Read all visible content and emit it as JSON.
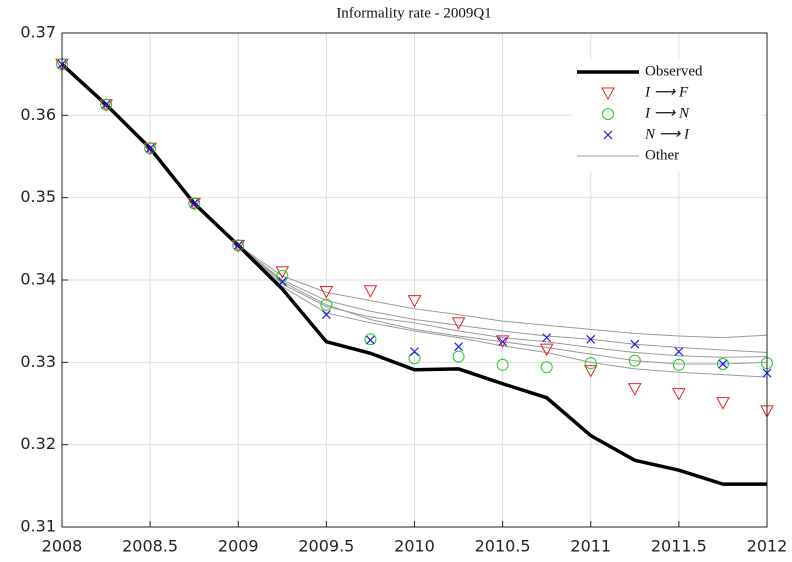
{
  "chart_data": {
    "type": "line",
    "title": "Informality rate - 2009Q1",
    "x": [
      2008,
      2008.25,
      2008.5,
      2008.75,
      2009,
      2009.25,
      2009.5,
      2009.75,
      2010,
      2010.25,
      2010.5,
      2010.75,
      2011,
      2011.25,
      2011.5,
      2011.75,
      2012
    ],
    "series": [
      {
        "name": "Observed",
        "color": "#000000",
        "marker": "line",
        "values": [
          0.3662,
          0.3613,
          0.356,
          0.3493,
          0.3442,
          0.3389,
          0.3325,
          0.3311,
          0.3291,
          0.3292,
          0.3274,
          0.3257,
          0.3211,
          0.3181,
          0.3169,
          0.3152,
          0.3152
        ]
      },
      {
        "name": "I ⟶ F",
        "color": "#e8202a",
        "marker": "triangle",
        "values": [
          0.3662,
          0.3613,
          0.356,
          0.3493,
          0.3442,
          0.341,
          0.3386,
          0.3387,
          0.3375,
          0.3348,
          0.3326,
          0.3316,
          0.329,
          0.3268,
          0.3262,
          0.3251,
          0.3241
        ]
      },
      {
        "name": "I ⟶ N",
        "color": "#22cc22",
        "marker": "circle",
        "values": [
          0.3662,
          0.3613,
          0.356,
          0.3493,
          0.3442,
          0.3405,
          0.337,
          0.3328,
          0.3305,
          0.3307,
          0.3297,
          0.3294,
          0.3299,
          0.3302,
          0.3297,
          0.3298,
          0.3299
        ]
      },
      {
        "name": "N ⟶ I",
        "color": "#1a1ae6",
        "marker": "x",
        "values": [
          0.3662,
          0.3613,
          0.356,
          0.3493,
          0.3442,
          0.3398,
          0.3358,
          0.3327,
          0.3313,
          0.3319,
          0.3325,
          0.333,
          0.3328,
          0.3322,
          0.3313,
          0.3298,
          0.3287
        ]
      }
    ],
    "other": {
      "name": "Other",
      "color": "#999999",
      "lines": [
        [
          null,
          null,
          null,
          null,
          0.3442,
          0.3405,
          0.3385,
          0.3375,
          0.3365,
          0.3358,
          0.335,
          0.3345,
          0.334,
          0.3335,
          0.3332,
          0.333,
          0.3333
        ],
        [
          null,
          null,
          null,
          null,
          0.3442,
          0.34,
          0.3375,
          0.3362,
          0.3352,
          0.3345,
          0.3338,
          0.3332,
          0.3328,
          0.3322,
          0.3318,
          0.3315,
          0.3312
        ],
        [
          null,
          null,
          null,
          null,
          0.3442,
          0.3395,
          0.3368,
          0.3355,
          0.3348,
          0.3338,
          0.333,
          0.3325,
          0.3318,
          0.3312,
          0.3308,
          0.3306,
          0.3307
        ],
        [
          null,
          null,
          null,
          null,
          0.3442,
          0.3398,
          0.337,
          0.3352,
          0.334,
          0.3332,
          0.3325,
          0.3318,
          0.331,
          0.3302,
          0.3298,
          0.3298,
          0.33
        ],
        [
          null,
          null,
          null,
          null,
          0.3442,
          0.3392,
          0.336,
          0.3348,
          0.3338,
          0.333,
          0.332,
          0.3312,
          0.33,
          0.3292,
          0.3288,
          0.3285,
          0.3282
        ]
      ]
    },
    "xlim": [
      2008,
      2012
    ],
    "xticks": [
      2008,
      2008.5,
      2009,
      2009.5,
      2010,
      2010.5,
      2011,
      2011.5,
      2012
    ],
    "ylim": [
      0.31,
      0.37
    ],
    "yticks": [
      0.31,
      0.32,
      0.33,
      0.34,
      0.35,
      0.36,
      0.37
    ],
    "grid": true,
    "legend": "upper right"
  }
}
